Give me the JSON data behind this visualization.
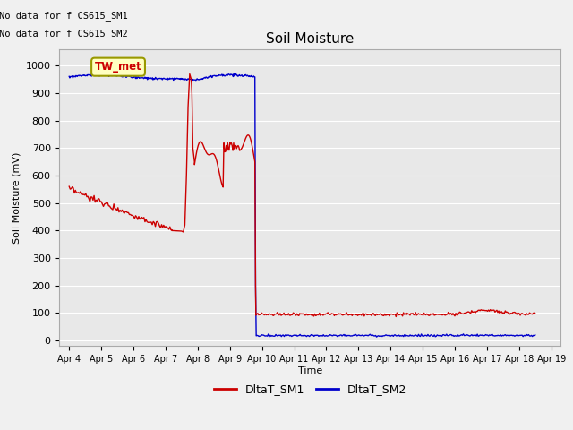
{
  "title": "Soil Moisture",
  "ylabel": "Soil Moisture (mV)",
  "xlabel": "Time",
  "annotation_text1": "No data for f CS615_SM1",
  "annotation_text2": "No data for f CS615_SM2",
  "station_label": "TW_met",
  "ylim": [
    -20,
    1060
  ],
  "yticks": [
    0,
    100,
    200,
    300,
    400,
    500,
    600,
    700,
    800,
    900,
    1000
  ],
  "bg_color": "#e8e8e8",
  "grid_color": "#ffffff",
  "sm1_color": "#cc0000",
  "sm2_color": "#0000cc",
  "legend_sm1": "DltaT_SM1",
  "legend_sm2": "DltaT_SM2",
  "x_tick_labels": [
    "Apr 4",
    "Apr 5",
    "Apr 6",
    "Apr 7",
    "Apr 8",
    "Apr 9",
    "Apr 10",
    "Apr 11",
    "Apr 12",
    "Apr 13",
    "Apr 14",
    "Apr 15",
    "Apr 16",
    "Apr 17",
    "Apr 18",
    "Apr 19"
  ],
  "figsize": [
    6.4,
    4.8
  ],
  "dpi": 100,
  "fig_facecolor": "#f0f0f0"
}
